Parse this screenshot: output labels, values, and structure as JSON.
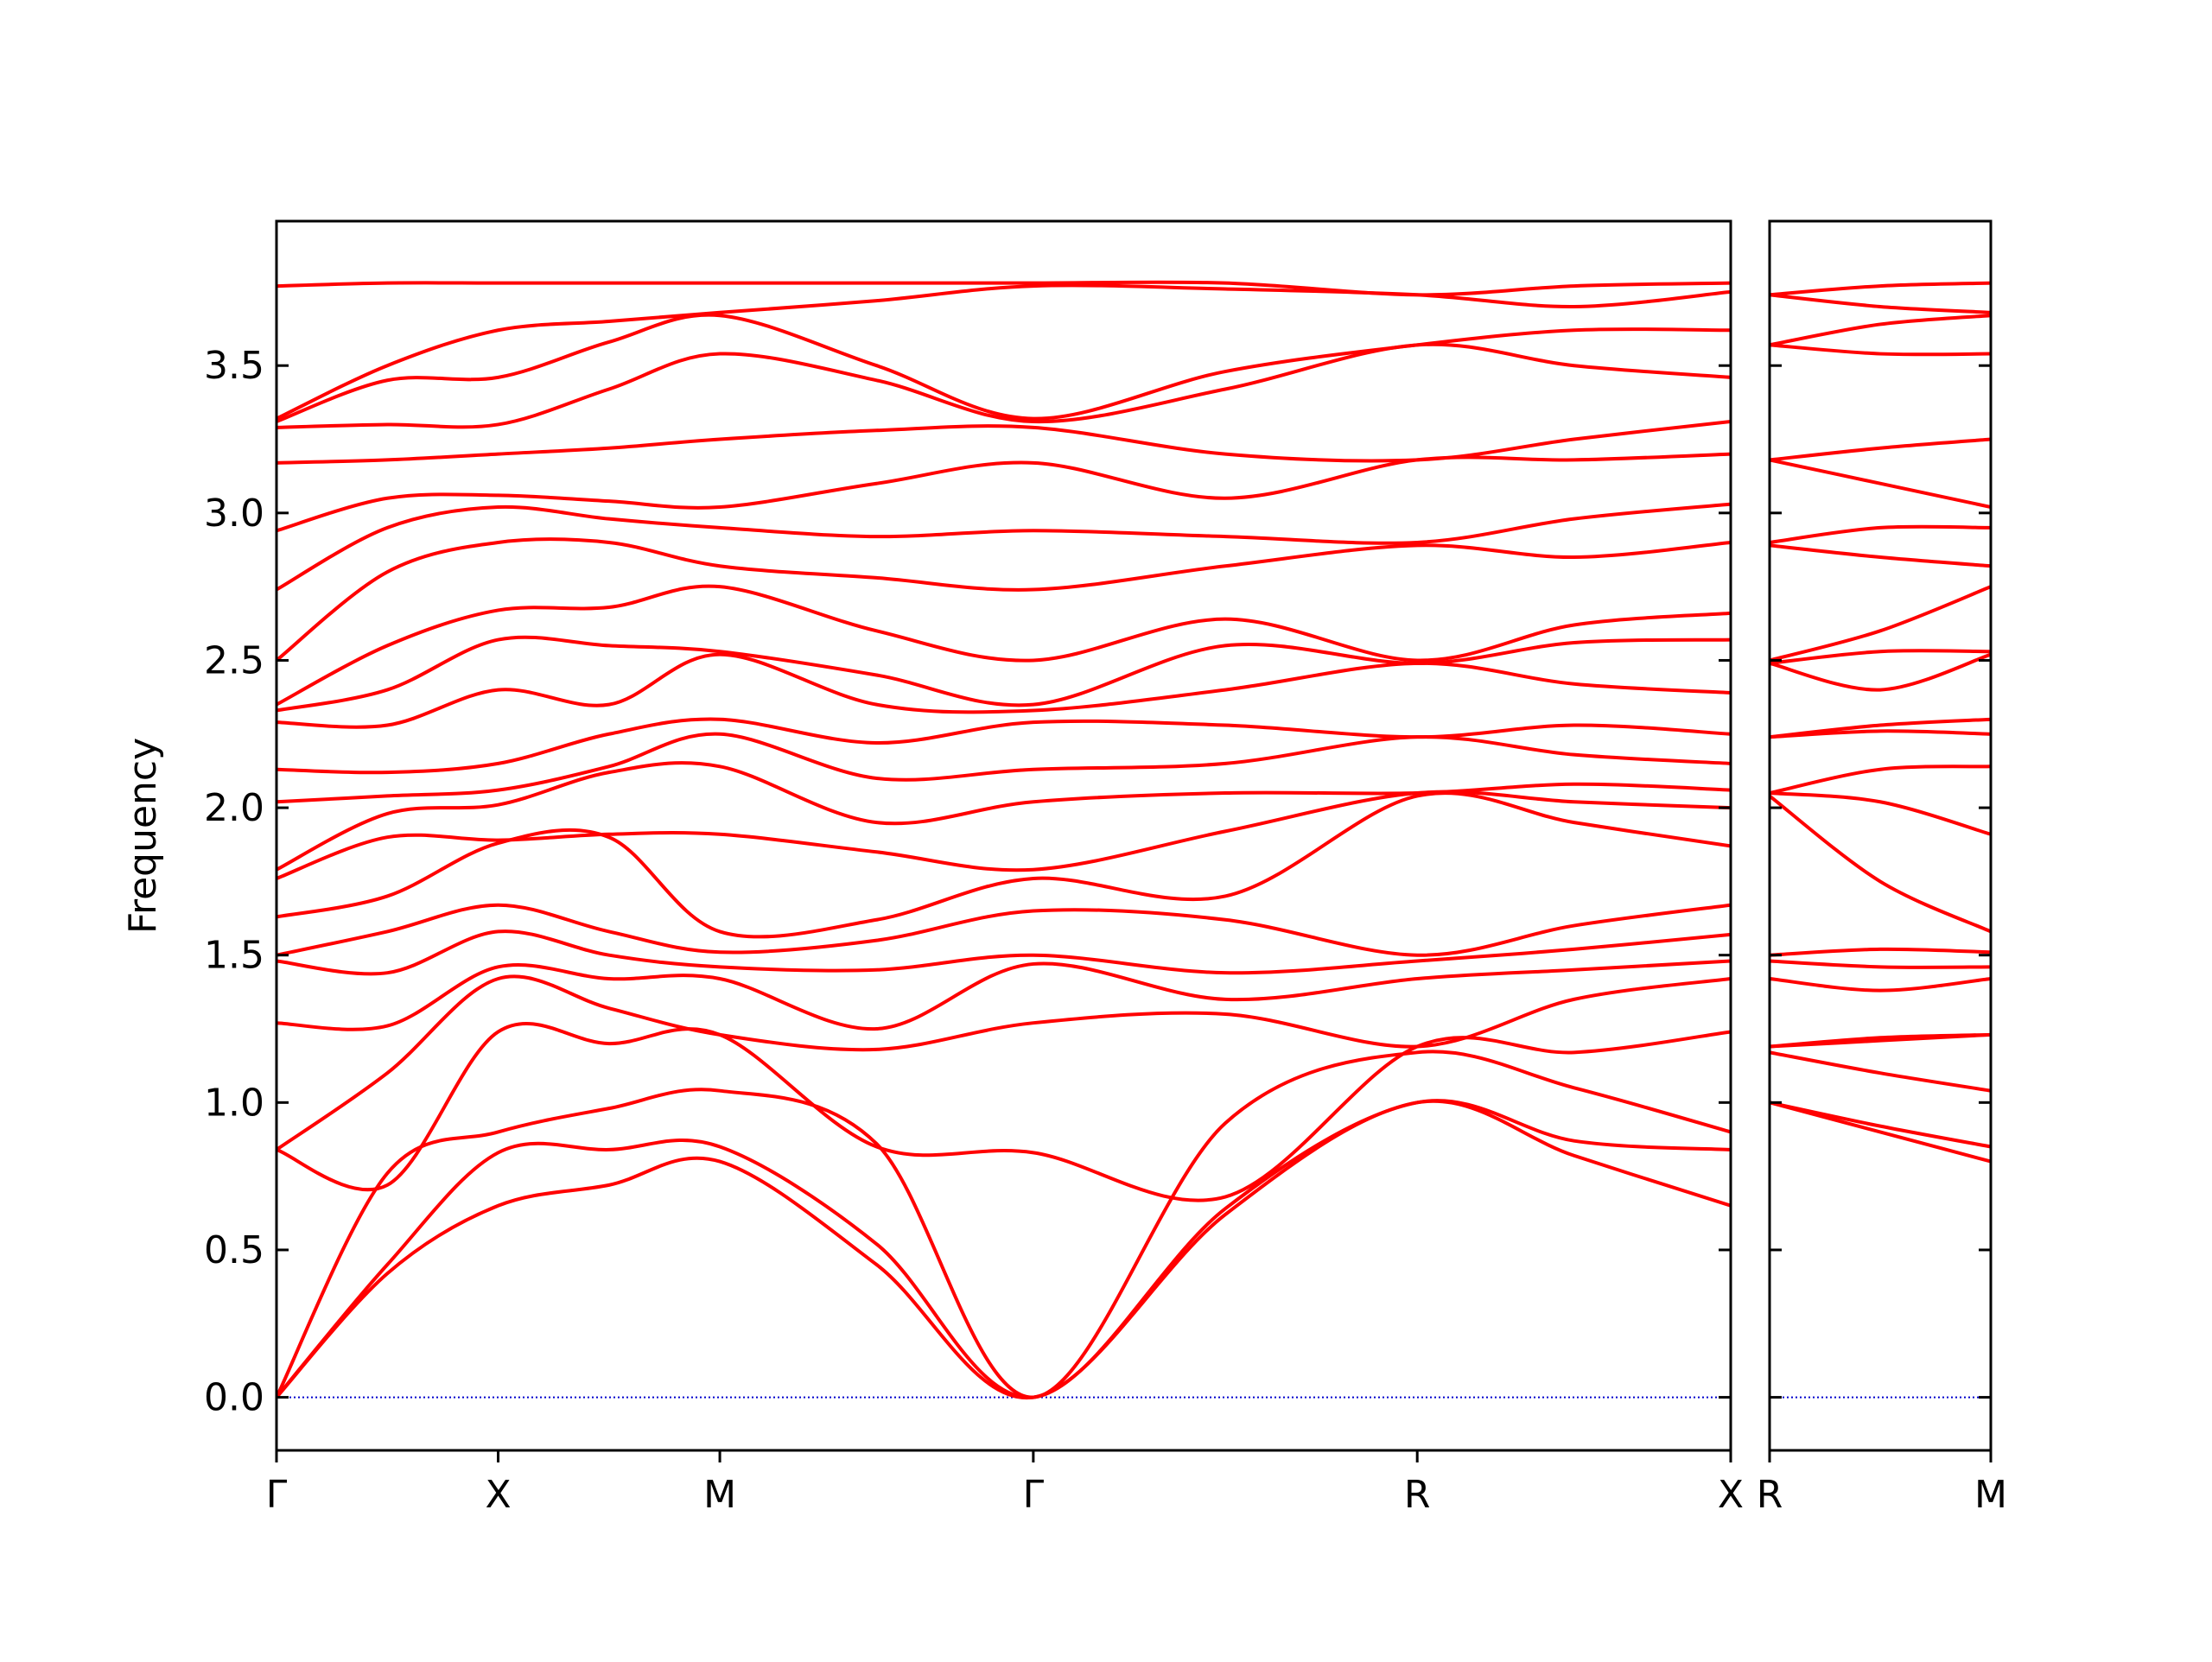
{
  "chart_data": [
    {
      "type": "line",
      "ylabel": "Frequency",
      "color": "#ff0000",
      "hline": 0,
      "hline_color": "#0000cc",
      "x": [
        0,
        0.25,
        0.5,
        0.75,
        1.0,
        1.3536,
        1.7071,
        2.1401,
        2.5731,
        2.9267,
        3.2802
      ],
      "xlim": [
        0,
        3.2802
      ],
      "xticks": [
        {
          "value": 0,
          "label": "Γ"
        },
        {
          "value": 0.5,
          "label": "X"
        },
        {
          "value": 1.0,
          "label": "M"
        },
        {
          "value": 1.7071,
          "label": "Γ"
        },
        {
          "value": 2.5731,
          "label": "R"
        },
        {
          "value": 3.2802,
          "label": "X"
        }
      ],
      "ylim": [
        -0.18,
        3.99
      ],
      "yticks": [
        {
          "value": 0,
          "label": "0.0"
        },
        {
          "value": 0.5,
          "label": "0.5"
        },
        {
          "value": 1,
          "label": "1.0"
        },
        {
          "value": 1.5,
          "label": "1.5"
        },
        {
          "value": 2,
          "label": "2.0"
        },
        {
          "value": 2.5,
          "label": "2.5"
        },
        {
          "value": 3,
          "label": "3.0"
        },
        {
          "value": 3.5,
          "label": "3.5"
        }
      ],
      "series": [
        {
          "values": [
            0,
            0.42,
            0.65,
            0.72,
            0.8,
            0.45,
            0,
            0.62,
            1.0,
            0.82,
            0.65
          ]
        },
        {
          "values": [
            0,
            0.45,
            0.83,
            0.84,
            0.85,
            0.52,
            0,
            0.64,
            1.0,
            0.87,
            0.84
          ]
        },
        {
          "values": [
            0,
            0.76,
            0.9,
            0.98,
            1.04,
            0.86,
            0,
            0.93,
            1.17,
            1.05,
            0.9
          ]
        },
        {
          "values": [
            0.84,
            0.72,
            1.24,
            1.2,
            1.23,
            0.85,
            0.83,
            0.68,
            1.19,
            1.17,
            1.24
          ]
        },
        {
          "values": [
            0.84,
            1.1,
            1.42,
            1.32,
            1.23,
            1.18,
            1.27,
            1.3,
            1.19,
            1.35,
            1.42
          ]
        },
        {
          "values": [
            1.27,
            1.26,
            1.46,
            1.42,
            1.42,
            1.25,
            1.47,
            1.35,
            1.42,
            1.45,
            1.48
          ]
        },
        {
          "values": [
            1.48,
            1.44,
            1.58,
            1.5,
            1.46,
            1.45,
            1.5,
            1.44,
            1.48,
            1.52,
            1.57
          ]
        },
        {
          "values": [
            1.5,
            1.58,
            1.67,
            1.58,
            1.51,
            1.55,
            1.65,
            1.62,
            1.5,
            1.6,
            1.67
          ]
        },
        {
          "values": [
            1.63,
            1.7,
            1.88,
            1.9,
            1.58,
            1.62,
            1.76,
            1.7,
            2.04,
            1.95,
            1.87
          ]
        },
        {
          "values": [
            1.76,
            1.9,
            1.89,
            1.91,
            1.91,
            1.85,
            1.79,
            1.92,
            2.05,
            2.02,
            2.0
          ]
        },
        {
          "values": [
            1.79,
            1.98,
            2.01,
            2.12,
            2.14,
            1.95,
            2.02,
            2.05,
            2.05,
            2.08,
            2.06
          ]
        },
        {
          "values": [
            2.02,
            2.04,
            2.06,
            2.14,
            2.25,
            2.1,
            2.13,
            2.15,
            2.24,
            2.18,
            2.15
          ]
        },
        {
          "values": [
            2.13,
            2.12,
            2.15,
            2.25,
            2.3,
            2.22,
            2.29,
            2.28,
            2.24,
            2.28,
            2.25
          ]
        },
        {
          "values": [
            2.29,
            2.28,
            2.4,
            2.35,
            2.52,
            2.35,
            2.33,
            2.4,
            2.49,
            2.42,
            2.39
          ]
        },
        {
          "values": [
            2.33,
            2.4,
            2.57,
            2.55,
            2.53,
            2.45,
            2.35,
            2.55,
            2.49,
            2.56,
            2.57
          ]
        },
        {
          "values": [
            2.35,
            2.55,
            2.67,
            2.68,
            2.75,
            2.6,
            2.5,
            2.64,
            2.5,
            2.62,
            2.66
          ]
        },
        {
          "values": [
            2.5,
            2.8,
            2.9,
            2.9,
            2.82,
            2.78,
            2.74,
            2.82,
            2.89,
            2.85,
            2.9
          ]
        },
        {
          "values": [
            2.74,
            2.95,
            3.02,
            2.98,
            2.95,
            2.92,
            2.94,
            2.92,
            2.9,
            2.98,
            3.03
          ]
        },
        {
          "values": [
            2.94,
            3.05,
            3.06,
            3.04,
            3.02,
            3.1,
            3.17,
            3.05,
            3.18,
            3.18,
            3.2
          ]
        },
        {
          "values": [
            3.17,
            3.18,
            3.2,
            3.22,
            3.25,
            3.28,
            3.29,
            3.2,
            3.18,
            3.25,
            3.31
          ]
        },
        {
          "values": [
            3.29,
            3.3,
            3.3,
            3.42,
            3.54,
            3.45,
            3.31,
            3.42,
            3.57,
            3.5,
            3.46
          ]
        },
        {
          "values": [
            3.31,
            3.45,
            3.46,
            3.58,
            3.67,
            3.5,
            3.32,
            3.48,
            3.57,
            3.62,
            3.62
          ]
        },
        {
          "values": [
            3.32,
            3.5,
            3.62,
            3.65,
            3.68,
            3.72,
            3.77,
            3.76,
            3.74,
            3.7,
            3.75
          ]
        },
        {
          "values": [
            3.77,
            3.78,
            3.78,
            3.78,
            3.78,
            3.78,
            3.78,
            3.78,
            3.74,
            3.77,
            3.78
          ]
        }
      ]
    },
    {
      "type": "line",
      "color": "#ff0000",
      "hline": 0,
      "hline_color": "#0000cc",
      "x": [
        0,
        0.25,
        0.5
      ],
      "xlim": [
        0,
        0.5
      ],
      "xticks": [
        {
          "value": 0,
          "label": "R"
        },
        {
          "value": 0.5,
          "label": "M"
        }
      ],
      "ylim": [
        -0.18,
        3.99
      ],
      "series": [
        {
          "values": [
            1.0,
            0.9,
            0.8
          ]
        },
        {
          "values": [
            1.0,
            0.92,
            0.85
          ]
        },
        {
          "values": [
            1.17,
            1.1,
            1.04
          ]
        },
        {
          "values": [
            1.19,
            1.21,
            1.23
          ]
        },
        {
          "values": [
            1.19,
            1.22,
            1.23
          ]
        },
        {
          "values": [
            1.42,
            1.38,
            1.42
          ]
        },
        {
          "values": [
            1.48,
            1.46,
            1.46
          ]
        },
        {
          "values": [
            1.5,
            1.52,
            1.51
          ]
        },
        {
          "values": [
            2.04,
            1.75,
            1.58
          ]
        },
        {
          "values": [
            2.05,
            2.02,
            1.91
          ]
        },
        {
          "values": [
            2.05,
            2.13,
            2.14
          ]
        },
        {
          "values": [
            2.24,
            2.26,
            2.25
          ]
        },
        {
          "values": [
            2.24,
            2.28,
            2.3
          ]
        },
        {
          "values": [
            2.49,
            2.4,
            2.52
          ]
        },
        {
          "values": [
            2.49,
            2.53,
            2.53
          ]
        },
        {
          "values": [
            2.5,
            2.6,
            2.75
          ]
        },
        {
          "values": [
            2.89,
            2.85,
            2.82
          ]
        },
        {
          "values": [
            2.9,
            2.95,
            2.95
          ]
        },
        {
          "values": [
            3.18,
            3.1,
            3.02
          ]
        },
        {
          "values": [
            3.18,
            3.22,
            3.25
          ]
        },
        {
          "values": [
            3.57,
            3.54,
            3.54
          ]
        },
        {
          "values": [
            3.57,
            3.64,
            3.67
          ]
        },
        {
          "values": [
            3.74,
            3.7,
            3.68
          ]
        },
        {
          "values": [
            3.74,
            3.77,
            3.78
          ]
        }
      ]
    }
  ]
}
